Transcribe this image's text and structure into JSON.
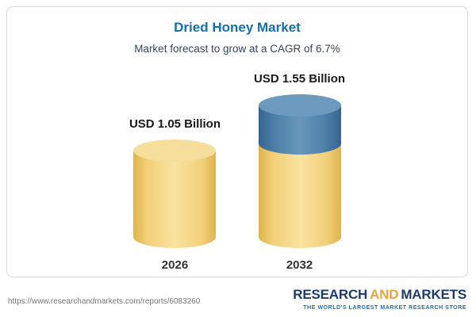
{
  "chart_data": {
    "type": "bar",
    "title": "Dried Honey Market",
    "subtitle": "Market forecast to grow at a CAGR of 6.7%",
    "categories": [
      "2026",
      "2032"
    ],
    "values": [
      1.05,
      1.55
    ],
    "unit": "USD Billion",
    "value_labels": [
      "USD 1.05 Billion",
      "USD 1.55 Billion"
    ],
    "cagr": "6.7%",
    "ylim": [
      0,
      1.8
    ],
    "grid": false,
    "legend": "none",
    "bar_style": "3d-cylinder",
    "annotations": [
      "Top segment of the 2032 cylinder is shaded blue to indicate forecast growth over the 2026 value"
    ]
  },
  "footer": {
    "url": "https://www.researchandmarkets.com/reports/6083260",
    "logo": {
      "word1": "RESEARCH",
      "word2": "AND",
      "word3": "MARKETS",
      "tagline": "THE WORLD'S LARGEST MARKET RESEARCH STORE"
    }
  },
  "colors": {
    "title_blue": "#1371ad",
    "bar_yellow": "#f0cb70",
    "bar_yellow_top": "#f6df9c",
    "bar_blue": "#4a7fa8",
    "bar_blue_top": "#6c9abf",
    "logo_navy": "#1d3c6e",
    "logo_orange": "#efa33a",
    "tagline_blue": "#1d6fb5",
    "card_border": "#d9d9d9"
  }
}
